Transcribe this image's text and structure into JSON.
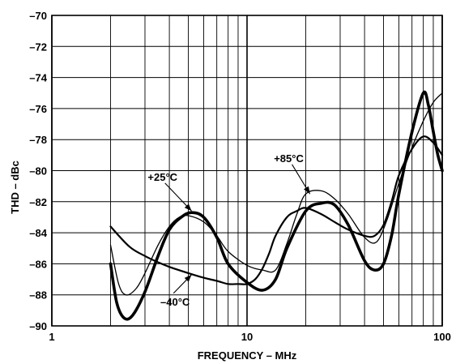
{
  "chart_data": {
    "type": "line",
    "xlabel": "FREQUENCY – MHz",
    "ylabel": "THD – dBc",
    "x_scale": "log",
    "xlim": [
      1,
      100
    ],
    "ylim": [
      -90,
      -70
    ],
    "grid": true,
    "x_ticks": [
      {
        "value": 1,
        "label": "1"
      },
      {
        "value": 10,
        "label": "10"
      },
      {
        "value": 100,
        "label": "100"
      }
    ],
    "y_ticks": [
      {
        "value": -70,
        "label": "–70"
      },
      {
        "value": -72,
        "label": "–72"
      },
      {
        "value": -74,
        "label": "–74"
      },
      {
        "value": -76,
        "label": "–76"
      },
      {
        "value": -78,
        "label": "–78"
      },
      {
        "value": -80,
        "label": "–80"
      },
      {
        "value": -82,
        "label": "–82"
      },
      {
        "value": -84,
        "label": "–84"
      },
      {
        "value": -86,
        "label": "–86"
      },
      {
        "value": -88,
        "label": "–88"
      },
      {
        "value": -90,
        "label": "–90"
      }
    ],
    "series": [
      {
        "key": "t25",
        "name": "+25°C",
        "stroke_color": "#000000",
        "stroke_weight": "heavy",
        "x": [
          2,
          2.15,
          2.35,
          2.6,
          3,
          3.5,
          4,
          4.6,
          5.2,
          6,
          7,
          8,
          10,
          12,
          14,
          16,
          20,
          24,
          28,
          33,
          40,
          45,
          50,
          55,
          60,
          70,
          80,
          85,
          90,
          95,
          100
        ],
        "y": [
          -86,
          -88.5,
          -89.5,
          -89.3,
          -87.8,
          -85.5,
          -83.8,
          -83,
          -82.7,
          -83,
          -84.3,
          -86,
          -87.2,
          -87.7,
          -87,
          -85,
          -82.6,
          -82.1,
          -82.2,
          -83.5,
          -85.8,
          -86.4,
          -86,
          -84.2,
          -81.5,
          -77.5,
          -75,
          -75.8,
          -77.5,
          -79,
          -80
        ]
      },
      {
        "key": "t85",
        "name": "+85°C",
        "stroke_color": "#000000",
        "stroke_weight": "thin",
        "x": [
          2,
          2.2,
          2.4,
          2.7,
          3,
          3.5,
          4,
          4.5,
          5,
          6,
          7,
          8,
          10,
          12,
          14,
          16,
          18,
          20,
          24,
          28,
          33,
          40,
          46,
          52,
          60,
          70,
          80,
          90,
          100
        ],
        "y": [
          -84.8,
          -87.3,
          -88,
          -87.6,
          -86.6,
          -84.8,
          -83.6,
          -83,
          -82.9,
          -83.3,
          -84.2,
          -85.2,
          -86.1,
          -86.4,
          -86.4,
          -84.7,
          -82.8,
          -81.5,
          -81.3,
          -81.8,
          -82.8,
          -84.3,
          -84.6,
          -83.2,
          -80.8,
          -78.5,
          -76.8,
          -75.6,
          -75
        ]
      },
      {
        "key": "tm40",
        "name": "–40°C",
        "stroke_color": "#000000",
        "stroke_weight": "medium",
        "x": [
          2,
          2.5,
          3,
          3.5,
          4,
          5,
          6,
          7,
          8,
          9,
          10,
          11,
          12,
          13,
          14,
          16,
          18,
          20,
          24,
          28,
          33,
          40,
          45,
          50,
          55,
          60,
          70,
          80,
          90,
          100
        ],
        "y": [
          -83.6,
          -84.9,
          -85.5,
          -85.9,
          -86.2,
          -86.6,
          -86.9,
          -87.1,
          -87.3,
          -87.3,
          -87.3,
          -87,
          -86.3,
          -85.3,
          -84.2,
          -83,
          -82.6,
          -82.4,
          -82.8,
          -83.3,
          -83.8,
          -84.2,
          -84.2,
          -83.5,
          -82,
          -80.3,
          -78.6,
          -77.8,
          -78.2,
          -79
        ]
      }
    ],
    "annotations": [
      {
        "key": "a25",
        "text": "+25°C",
        "arrow_from": {
          "x": 3.8,
          "y": -80.8
        },
        "arrow_to": {
          "x": 5.2,
          "y": -82.6
        }
      },
      {
        "key": "a85",
        "text": "+85°C",
        "arrow_from": {
          "x": 17,
          "y": -79.6
        },
        "arrow_to": {
          "x": 21,
          "y": -81.5
        }
      },
      {
        "key": "am40",
        "text": "–40°C",
        "arrow_from": {
          "x": 4.2,
          "y": -87.9
        },
        "arrow_to": {
          "x": 5.2,
          "y": -86.7
        }
      }
    ]
  }
}
